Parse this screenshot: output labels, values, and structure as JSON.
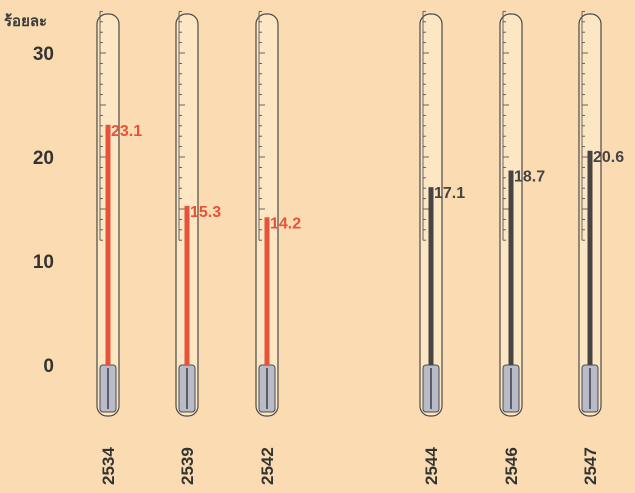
{
  "chart_data": {
    "type": "bar",
    "y_unit_label": "ร้อยละ",
    "ylim": [
      0,
      35
    ],
    "yticks": [
      0,
      10,
      20,
      30
    ],
    "grid": false,
    "categories": [
      "2534",
      "2539",
      "2542",
      "2544",
      "2546",
      "2547"
    ],
    "values": [
      23.1,
      15.3,
      14.2,
      17.1,
      18.7,
      20.6
    ],
    "value_labels": [
      "23.1",
      "15.3",
      "14.2",
      "17.1",
      "18.7",
      "20.6"
    ],
    "group_colors": [
      "#e5533a",
      "#e5533a",
      "#e5533a",
      "#474444",
      "#474444",
      "#474444"
    ]
  },
  "colors": {
    "background": "#fbdcb2",
    "tube_outline": "#4a4a4a",
    "tube_fill": "#fde6c4",
    "bulb_fill": "#b9bcc8",
    "scale": "#555555"
  }
}
